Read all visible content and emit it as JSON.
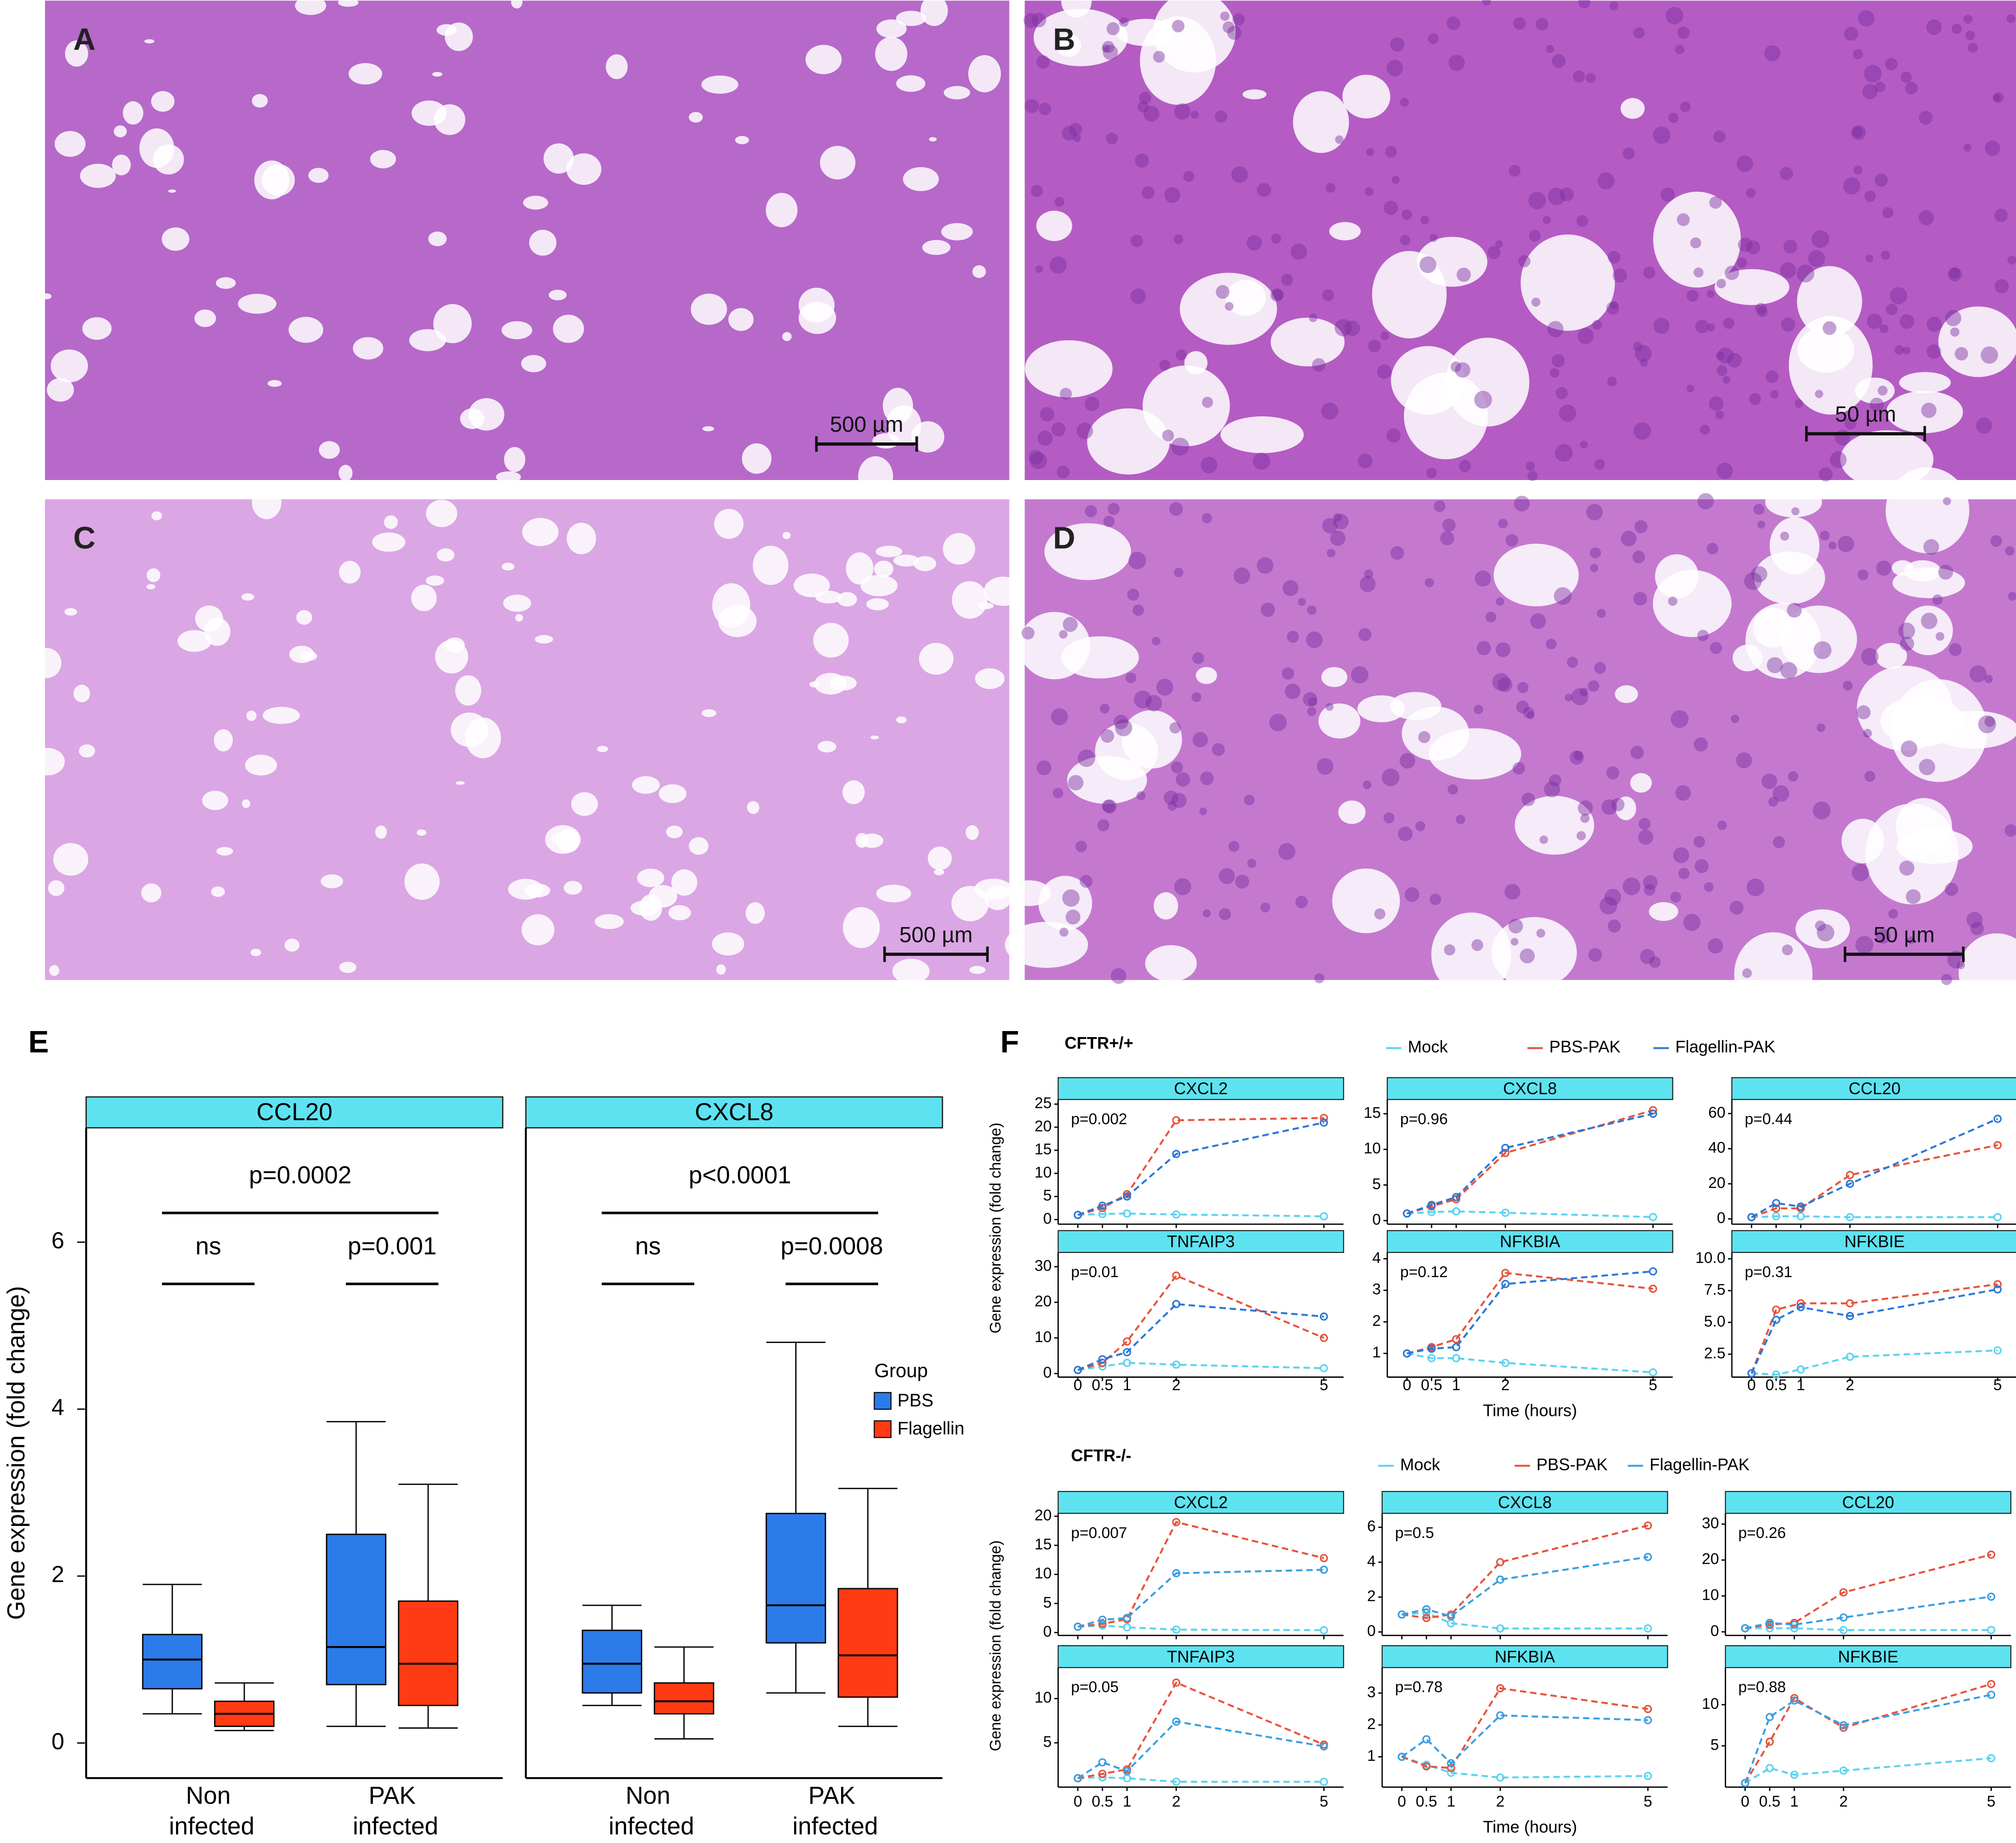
{
  "micrographs": [
    {
      "label": "A",
      "scale_bar": "500 µm"
    },
    {
      "label": "B",
      "scale_bar": "50 µm"
    },
    {
      "label": "C",
      "scale_bar": "500 µm"
    },
    {
      "label": "D",
      "scale_bar": "50 µm"
    }
  ],
  "chart_data": [
    {
      "type": "box",
      "label": "E",
      "ylabel": "Gene expression (fold change)",
      "ylim": [
        -0.42,
        7.37
      ],
      "yticks": [
        0,
        2,
        4,
        6
      ],
      "legend_title": "Group",
      "series": [
        {
          "name": "PBS",
          "color": "#2b7be8"
        },
        {
          "name": "Flagellin",
          "color": "#ff3b14"
        }
      ],
      "categories": [
        "Non infected",
        "PAK infected"
      ],
      "facets": [
        {
          "title": "CCL20",
          "annotations": [
            "p=0.0002",
            "ns",
            "p=0.001"
          ],
          "boxes": [
            [
              {
                "min": 0.35,
                "q1": 0.65,
                "median": 1.0,
                "q3": 1.3,
                "max": 1.9
              },
              {
                "min": 0.15,
                "q1": 0.2,
                "median": 0.35,
                "q3": 0.5,
                "max": 0.72
              }
            ],
            [
              {
                "min": 0.2,
                "q1": 0.7,
                "median": 1.15,
                "q3": 2.5,
                "max": 3.85
              },
              {
                "min": 0.18,
                "q1": 0.45,
                "median": 0.95,
                "q3": 1.7,
                "max": 3.1
              }
            ]
          ]
        },
        {
          "title": "CXCL8",
          "annotations": [
            "p<0.0001",
            "ns",
            "p=0.0008"
          ],
          "boxes": [
            [
              {
                "min": 0.45,
                "q1": 0.6,
                "median": 0.95,
                "q3": 1.35,
                "max": 1.65
              },
              {
                "min": 0.05,
                "q1": 0.35,
                "median": 0.5,
                "q3": 0.72,
                "max": 1.15
              }
            ],
            [
              {
                "min": 0.6,
                "q1": 1.2,
                "median": 1.65,
                "q3": 2.75,
                "max": 4.8
              },
              {
                "min": 0.2,
                "q1": 0.55,
                "median": 1.05,
                "q3": 1.85,
                "max": 3.05
              }
            ]
          ]
        }
      ]
    },
    {
      "type": "line",
      "label": "F",
      "title": "CFTR+/+",
      "ylabel": "Gene expression (fold change)",
      "xlabel": "Time (hours)",
      "x": [
        0,
        0.5,
        1,
        2,
        5
      ],
      "xlim": [
        -0.4,
        5.4
      ],
      "xticks": [
        0,
        0.5,
        1,
        2,
        5
      ],
      "series": [
        {
          "name": "Mock",
          "color": "#5bd3f0"
        },
        {
          "name": "PBS-PAK",
          "color": "#e8533a"
        },
        {
          "name": "Flagellin-PAK",
          "color": "#2b78d6"
        }
      ],
      "panels": [
        {
          "title": "CXCL2",
          "annotation": "p=0.002",
          "ylim": [
            -1,
            26
          ],
          "yticks": [
            0,
            5,
            10,
            15,
            20,
            25
          ],
          "values": [
            [
              1,
              1.2,
              1.3,
              1.1,
              0.7
            ],
            [
              1,
              2.5,
              5.5,
              21.5,
              22
            ],
            [
              1,
              3,
              5,
              14.2,
              21
            ]
          ]
        },
        {
          "title": "CXCL8",
          "annotation": "p=0.96",
          "ylim": [
            -0.5,
            17
          ],
          "yticks": [
            0,
            5,
            10,
            15
          ],
          "values": [
            [
              1,
              1.2,
              1.3,
              1.1,
              0.5
            ],
            [
              1,
              2,
              3,
              9.5,
              15.5
            ],
            [
              1,
              2.2,
              3.3,
              10.2,
              15
            ]
          ]
        },
        {
          "title": "CCL20",
          "annotation": "p=0.44",
          "ylim": [
            -3,
            68
          ],
          "yticks": [
            0,
            20,
            40,
            60
          ],
          "values": [
            [
              1,
              1.5,
              1.5,
              1,
              1
            ],
            [
              1,
              6,
              6,
              25,
              42
            ],
            [
              1,
              9,
              7,
              20,
              57
            ]
          ]
        },
        {
          "title": "TNFAIP3",
          "annotation": "p=0.01",
          "ylim": [
            -1,
            34
          ],
          "yticks": [
            0,
            10,
            20,
            30
          ],
          "values": [
            [
              1,
              2,
              3,
              2.5,
              1.5
            ],
            [
              1,
              3,
              9,
              27.5,
              10
            ],
            [
              1,
              4,
              6,
              19.5,
              16
            ]
          ]
        },
        {
          "title": "NFKBIA",
          "annotation": "p=0.12",
          "ylim": [
            0.25,
            4.2
          ],
          "yticks": [
            1,
            2,
            3,
            4
          ],
          "values": [
            [
              1,
              0.85,
              0.85,
              0.7,
              0.4
            ],
            [
              1,
              1.2,
              1.45,
              3.55,
              3.05
            ],
            [
              1,
              1.15,
              1.2,
              3.2,
              3.6
            ]
          ]
        },
        {
          "title": "NFKBIE",
          "annotation": "p=0.31",
          "ylim": [
            0.7,
            10.5
          ],
          "yticks": [
            2.5,
            {
              "value": 5,
              "label": "5.0"
            },
            7.5,
            {
              "value": 10,
              "label": "10.0"
            }
          ],
          "values": [
            [
              1,
              0.9,
              1.3,
              2.3,
              2.8
            ],
            [
              1,
              6,
              6.5,
              6.5,
              8
            ],
            [
              1,
              5.2,
              6.2,
              5.5,
              7.6
            ]
          ]
        }
      ]
    },
    {
      "type": "line",
      "title": "CFTR-/-",
      "ylabel": "Gene expression (fold change)",
      "xlabel": "Time (hours)",
      "x": [
        0,
        0.5,
        1,
        2,
        5
      ],
      "xlim": [
        -0.4,
        5.4
      ],
      "xticks": [
        0,
        0.5,
        1,
        2,
        5
      ],
      "series": [
        {
          "name": "Mock",
          "color": "#5bd3f0"
        },
        {
          "name": "PBS-PAK",
          "color": "#e8533a"
        },
        {
          "name": "Flagellin-PAK",
          "color": "#3a9fe0"
        }
      ],
      "panels": [
        {
          "title": "CXCL2",
          "annotation": "p=0.007",
          "ylim": [
            -0.5,
            20.5
          ],
          "yticks": [
            0,
            5,
            10,
            15,
            20
          ],
          "values": [
            [
              1,
              1.2,
              0.9,
              0.5,
              0.4
            ],
            [
              1,
              1.5,
              2.3,
              19,
              12.8
            ],
            [
              1,
              2.2,
              2.5,
              10.2,
              10.8
            ]
          ]
        },
        {
          "title": "CXCL8",
          "annotation": "p=0.5",
          "ylim": [
            -0.2,
            6.8
          ],
          "yticks": [
            0,
            2,
            4,
            6
          ],
          "values": [
            [
              1,
              1.1,
              0.5,
              0.2,
              0.2
            ],
            [
              1,
              0.8,
              1,
              4,
              6.1
            ],
            [
              1,
              1.3,
              0.9,
              3,
              4.3
            ]
          ]
        },
        {
          "title": "CCL20",
          "annotation": "p=0.26",
          "ylim": [
            -1,
            33
          ],
          "yticks": [
            0,
            10,
            20,
            30
          ],
          "values": [
            [
              1,
              1,
              1,
              0.5,
              0.5
            ],
            [
              1,
              2,
              2.5,
              11,
              21.5
            ],
            [
              1,
              2.5,
              2,
              4,
              9.8
            ]
          ]
        },
        {
          "title": "TNFAIP3",
          "annotation": "p=0.05",
          "ylim": [
            0,
            13.5
          ],
          "yticks": [
            5,
            10
          ],
          "values": [
            [
              1,
              1.1,
              1,
              0.6,
              0.6
            ],
            [
              1,
              1.5,
              2,
              11.8,
              4.8
            ],
            [
              1,
              2.8,
              1.8,
              7.4,
              4.6
            ]
          ]
        },
        {
          "title": "NFKBIA",
          "annotation": "p=0.78",
          "ylim": [
            0.05,
            3.8
          ],
          "yticks": [
            1,
            2,
            3
          ],
          "values": [
            [
              1,
              0.75,
              0.5,
              0.35,
              0.4
            ],
            [
              1,
              0.7,
              0.65,
              3.15,
              2.5
            ],
            [
              1,
              1.55,
              0.8,
              2.3,
              2.15
            ]
          ]
        },
        {
          "title": "NFKBIE",
          "annotation": "p=0.88",
          "ylim": [
            0,
            14.5
          ],
          "yticks": [
            5,
            10
          ],
          "values": [
            [
              0.5,
              2.3,
              1.5,
              2,
              3.5
            ],
            [
              0.5,
              5.5,
              10.8,
              7.2,
              12.5
            ],
            [
              0.5,
              8.5,
              10.5,
              7.5,
              11.2
            ]
          ]
        }
      ]
    }
  ]
}
